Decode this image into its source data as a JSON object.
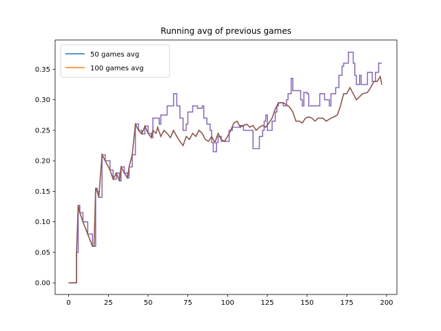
{
  "chart_data": {
    "type": "line",
    "title": "Running avg of previous games",
    "xlabel": "",
    "ylabel": "",
    "xlim": [
      -8.5,
      206.5
    ],
    "ylim": [
      -0.019,
      0.398
    ],
    "xticks": [
      0,
      25,
      50,
      75,
      100,
      125,
      150,
      175,
      200
    ],
    "yticks": [
      0.0,
      0.05,
      0.1,
      0.15,
      0.2,
      0.25,
      0.3,
      0.35
    ],
    "ytick_labels": [
      "0.00",
      "0.05",
      "0.10",
      "0.15",
      "0.20",
      "0.25",
      "0.30",
      "0.35"
    ],
    "grid": false,
    "legend_position": "top-left",
    "legend": [
      {
        "label": "50 games avg",
        "color": "#1f77b4"
      },
      {
        "label": "100 games avg",
        "color": "#ff7f0e"
      }
    ],
    "series": [
      {
        "name": "50 games avg",
        "legend": "50 games avg",
        "color": "#8c6fb8",
        "step": true,
        "points": [
          [
            0,
            0
          ],
          [
            5,
            0
          ],
          [
            5,
            0.05
          ],
          [
            6,
            0.127
          ],
          [
            7,
            0.115
          ],
          [
            9,
            0.1
          ],
          [
            12,
            0.08
          ],
          [
            15,
            0.06
          ],
          [
            16,
            0.06
          ],
          [
            17,
            0.155
          ],
          [
            18,
            0.15
          ],
          [
            19,
            0.14
          ],
          [
            21,
            0.21
          ],
          [
            23,
            0.2
          ],
          [
            26,
            0.185
          ],
          [
            28,
            0.17
          ],
          [
            30,
            0.18
          ],
          [
            32,
            0.167
          ],
          [
            33,
            0.19
          ],
          [
            35,
            0.18
          ],
          [
            37,
            0.172
          ],
          [
            38,
            0.19
          ],
          [
            40,
            0.21
          ],
          [
            42,
            0.26
          ],
          [
            44,
            0.25
          ],
          [
            46,
            0.244
          ],
          [
            48,
            0.257
          ],
          [
            50,
            0.245
          ],
          [
            52,
            0.238
          ],
          [
            53,
            0.27
          ],
          [
            56,
            0.27
          ],
          [
            57,
            0.26
          ],
          [
            58,
            0.275
          ],
          [
            61,
            0.275
          ],
          [
            62,
            0.29
          ],
          [
            65,
            0.29
          ],
          [
            66,
            0.31
          ],
          [
            68,
            0.29
          ],
          [
            70,
            0.27
          ],
          [
            72,
            0.25
          ],
          [
            74,
            0.26
          ],
          [
            75,
            0.28
          ],
          [
            77,
            0.28
          ],
          [
            78,
            0.29
          ],
          [
            80,
            0.29
          ],
          [
            81,
            0.286
          ],
          [
            84,
            0.29
          ],
          [
            85,
            0.27
          ],
          [
            87,
            0.26
          ],
          [
            89,
            0.25
          ],
          [
            90,
            0.23
          ],
          [
            91,
            0.215
          ],
          [
            93,
            0.23
          ],
          [
            94,
            0.24
          ],
          [
            96,
            0.232
          ],
          [
            100,
            0.232
          ],
          [
            101,
            0.25
          ],
          [
            103,
            0.255
          ],
          [
            108,
            0.258
          ],
          [
            110,
            0.25
          ],
          [
            115,
            0.25
          ],
          [
            116,
            0.22
          ],
          [
            119,
            0.22
          ],
          [
            120,
            0.24
          ],
          [
            122,
            0.25
          ],
          [
            123,
            0.265
          ],
          [
            124,
            0.275
          ],
          [
            125,
            0.25
          ],
          [
            128,
            0.265
          ],
          [
            130,
            0.28
          ],
          [
            131,
            0.29
          ],
          [
            132,
            0.295
          ],
          [
            135,
            0.29
          ],
          [
            137,
            0.3
          ],
          [
            138,
            0.31
          ],
          [
            140,
            0.335
          ],
          [
            141,
            0.315
          ],
          [
            145,
            0.315
          ],
          [
            146,
            0.3
          ],
          [
            147,
            0.29
          ],
          [
            148,
            0.312
          ],
          [
            150,
            0.31
          ],
          [
            151,
            0.29
          ],
          [
            157,
            0.29
          ],
          [
            158,
            0.31
          ],
          [
            160,
            0.31
          ],
          [
            161,
            0.3
          ],
          [
            164,
            0.29
          ],
          [
            165,
            0.31
          ],
          [
            168,
            0.32
          ],
          [
            170,
            0.34
          ],
          [
            171,
            0.34
          ],
          [
            172,
            0.355
          ],
          [
            173,
            0.36
          ],
          [
            175,
            0.36
          ],
          [
            176,
            0.378
          ],
          [
            178,
            0.378
          ],
          [
            179,
            0.36
          ],
          [
            180,
            0.34
          ],
          [
            181,
            0.325
          ],
          [
            183,
            0.34
          ],
          [
            184,
            0.325
          ],
          [
            187,
            0.325
          ],
          [
            188,
            0.345
          ],
          [
            190,
            0.345
          ],
          [
            191,
            0.33
          ],
          [
            193,
            0.345
          ],
          [
            195,
            0.36
          ],
          [
            197,
            0.36
          ]
        ]
      },
      {
        "name": "100 games avg",
        "legend": "100 games avg",
        "color": "#8c564b",
        "step": false,
        "points": [
          [
            0,
            0
          ],
          [
            5,
            0
          ],
          [
            5,
            0.05
          ],
          [
            6,
            0.127
          ],
          [
            7,
            0.115
          ],
          [
            9,
            0.1
          ],
          [
            12,
            0.08
          ],
          [
            15,
            0.06
          ],
          [
            16,
            0.06
          ],
          [
            17,
            0.155
          ],
          [
            18,
            0.15
          ],
          [
            19,
            0.14
          ],
          [
            21,
            0.21
          ],
          [
            23,
            0.2
          ],
          [
            26,
            0.185
          ],
          [
            28,
            0.17
          ],
          [
            30,
            0.18
          ],
          [
            32,
            0.167
          ],
          [
            33,
            0.19
          ],
          [
            35,
            0.18
          ],
          [
            37,
            0.172
          ],
          [
            38,
            0.19
          ],
          [
            40,
            0.21
          ],
          [
            42,
            0.26
          ],
          [
            44,
            0.25
          ],
          [
            46,
            0.244
          ],
          [
            48,
            0.257
          ],
          [
            50,
            0.245
          ],
          [
            52,
            0.238
          ],
          [
            53,
            0.25
          ],
          [
            55,
            0.245
          ],
          [
            56,
            0.255
          ],
          [
            58,
            0.24
          ],
          [
            60,
            0.25
          ],
          [
            62,
            0.245
          ],
          [
            64,
            0.238
          ],
          [
            66,
            0.25
          ],
          [
            68,
            0.24
          ],
          [
            70,
            0.232
          ],
          [
            72,
            0.225
          ],
          [
            74,
            0.24
          ],
          [
            76,
            0.235
          ],
          [
            78,
            0.245
          ],
          [
            80,
            0.24
          ],
          [
            82,
            0.25
          ],
          [
            84,
            0.245
          ],
          [
            86,
            0.235
          ],
          [
            88,
            0.232
          ],
          [
            90,
            0.24
          ],
          [
            92,
            0.23
          ],
          [
            94,
            0.245
          ],
          [
            96,
            0.235
          ],
          [
            98,
            0.232
          ],
          [
            100,
            0.24
          ],
          [
            102,
            0.25
          ],
          [
            104,
            0.262
          ],
          [
            106,
            0.265
          ],
          [
            108,
            0.255
          ],
          [
            110,
            0.258
          ],
          [
            112,
            0.26
          ],
          [
            114,
            0.255
          ],
          [
            116,
            0.258
          ],
          [
            118,
            0.25
          ],
          [
            120,
            0.255
          ],
          [
            122,
            0.258
          ],
          [
            124,
            0.255
          ],
          [
            126,
            0.262
          ],
          [
            128,
            0.27
          ],
          [
            130,
            0.285
          ],
          [
            132,
            0.295
          ],
          [
            135,
            0.295
          ],
          [
            137,
            0.292
          ],
          [
            139,
            0.288
          ],
          [
            141,
            0.28
          ],
          [
            143,
            0.265
          ],
          [
            145,
            0.265
          ],
          [
            147,
            0.262
          ],
          [
            149,
            0.27
          ],
          [
            151,
            0.272
          ],
          [
            153,
            0.27
          ],
          [
            155,
            0.265
          ],
          [
            157,
            0.27
          ],
          [
            160,
            0.27
          ],
          [
            162,
            0.265
          ],
          [
            165,
            0.27
          ],
          [
            167,
            0.272
          ],
          [
            169,
            0.275
          ],
          [
            171,
            0.29
          ],
          [
            173,
            0.31
          ],
          [
            175,
            0.31
          ],
          [
            177,
            0.32
          ],
          [
            179,
            0.31
          ],
          [
            181,
            0.3
          ],
          [
            183,
            0.305
          ],
          [
            185,
            0.31
          ],
          [
            188,
            0.312
          ],
          [
            190,
            0.32
          ],
          [
            192,
            0.33
          ],
          [
            194,
            0.33
          ],
          [
            196,
            0.338
          ],
          [
            197,
            0.325
          ]
        ]
      }
    ]
  }
}
